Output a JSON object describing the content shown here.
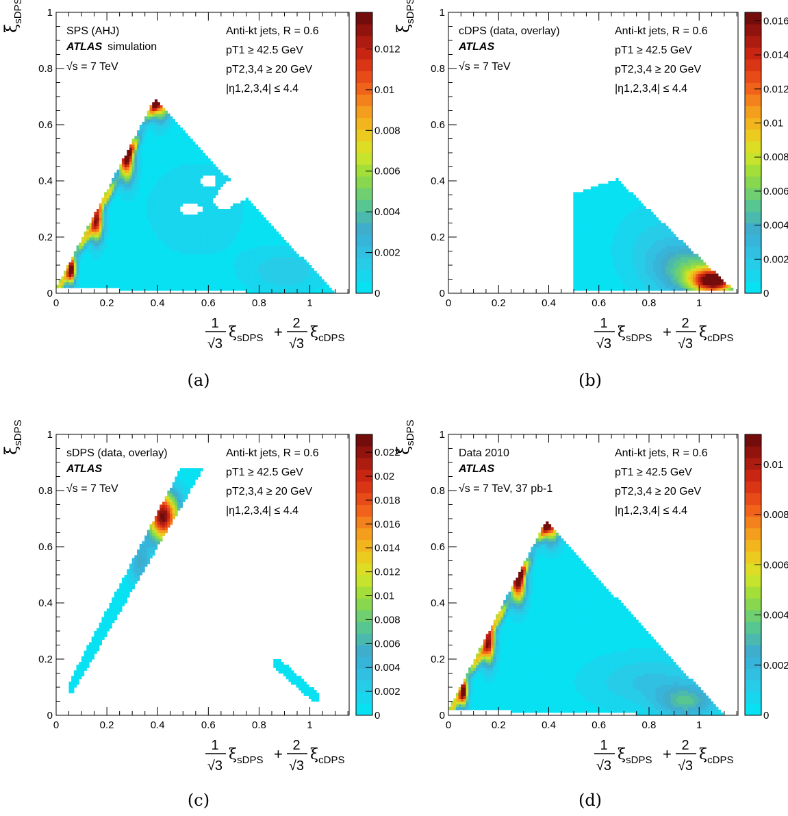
{
  "chart_data": [
    {
      "panel_label": "(a)",
      "type": "heatmap",
      "title": "",
      "legend_lines": [
        "SPS (AHJ)",
        "ATLAS",
        "simulation",
        "√s = 7 TeV"
      ],
      "cut_lines": [
        "Anti-kt jets, R = 0.6",
        "pT1 ≥ 42.5 GeV",
        "pT2,3,4 ≥ 20 GeV",
        "|η1,2,3,4| ≤ 4.4"
      ],
      "xlabel_parts": [
        "1",
        "√3",
        "ξ",
        "sDPS",
        "+",
        "2",
        "√3",
        "ξ",
        "cDPS"
      ],
      "ylabel_parts": [
        "ξ",
        "sDPS"
      ],
      "xlim": [
        0,
        1.155
      ],
      "ylim": [
        0,
        1
      ],
      "xticks": [
        0,
        0.2,
        0.4,
        0.6,
        0.8,
        1
      ],
      "xtick_labels": [
        "0",
        "0.2",
        "0.4",
        "0.6",
        "0.8",
        "1"
      ],
      "yticks": [
        0,
        0.2,
        0.4,
        0.6,
        0.8,
        1
      ],
      "ytick_labels": [
        "0",
        "0.2",
        "0.4",
        "0.6",
        "0.8",
        "1"
      ],
      "zlim": [
        0,
        0.0138
      ],
      "zticks": [
        0,
        0.002,
        0.004,
        0.006,
        0.008,
        0.01,
        0.012
      ],
      "ztick_labels": [
        "0",
        "0.002",
        "0.004",
        "0.006",
        "0.008",
        "0.01",
        "0.012"
      ],
      "background_level": 0.0003,
      "blobs": [
        {
          "x": 0.06,
          "y": 0.085,
          "sx": 0.012,
          "sy": 0.035,
          "amp": 0.0125
        },
        {
          "x": 0.16,
          "y": 0.26,
          "sx": 0.018,
          "sy": 0.05,
          "amp": 0.0115
        },
        {
          "x": 0.28,
          "y": 0.47,
          "sx": 0.02,
          "sy": 0.05,
          "amp": 0.0105
        },
        {
          "x": 0.41,
          "y": 0.7,
          "sx": 0.025,
          "sy": 0.05,
          "amp": 0.0125
        },
        {
          "x": 0.9,
          "y": 0.08,
          "sx": 0.1,
          "sy": 0.05,
          "amp": 0.0014
        },
        {
          "x": 0.55,
          "y": 0.3,
          "sx": 0.14,
          "sy": 0.12,
          "amp": 0.0007
        }
      ],
      "holes": [
        {
          "x": 0.53,
          "y": 0.3,
          "rx": 0.045,
          "ry": 0.02
        },
        {
          "x": 0.66,
          "y": 0.33,
          "rx": 0.04,
          "ry": 0.03
        },
        {
          "x": 0.6,
          "y": 0.4,
          "rx": 0.03,
          "ry": 0.025
        },
        {
          "x": 0.7,
          "y": 0.36,
          "rx": 0.06,
          "ry": 0.04
        }
      ],
      "support": "triangle"
    },
    {
      "panel_label": "(b)",
      "type": "heatmap",
      "title": "",
      "legend_lines": [
        "cDPS (data, overlay)",
        "ATLAS",
        "",
        "√s = 7 TeV"
      ],
      "cut_lines": [
        "Anti-kt jets, R = 0.6",
        "pT1 ≥ 42.5 GeV",
        "pT2,3,4 ≥ 20 GeV",
        "|η1,2,3,4| ≤ 4.4"
      ],
      "xlabel_parts": [
        "1",
        "√3",
        "ξ",
        "sDPS",
        "+",
        "2",
        "√3",
        "ξ",
        "cDPS"
      ],
      "ylabel_parts": [
        "ξ",
        "sDPS"
      ],
      "xlim": [
        0,
        1.155
      ],
      "ylim": [
        0,
        1
      ],
      "xticks": [
        0,
        0.2,
        0.4,
        0.6,
        0.8,
        1
      ],
      "xtick_labels": [
        "0",
        "0.2",
        "0.4",
        "0.6",
        "0.8",
        "1"
      ],
      "yticks": [
        0,
        0.2,
        0.4,
        0.6,
        0.8,
        1
      ],
      "ytick_labels": [
        "0",
        "0.2",
        "0.4",
        "0.6",
        "0.8",
        "1"
      ],
      "zlim": [
        0,
        0.0165
      ],
      "zticks": [
        0,
        0.002,
        0.004,
        0.006,
        0.008,
        0.01,
        0.012,
        0.014,
        0.016
      ],
      "ztick_labels": [
        "0",
        "0.002",
        "0.004",
        "0.006",
        "0.008",
        "0.01",
        "0.012",
        "0.014",
        "0.016"
      ],
      "background_level": 0.0003,
      "blobs": [
        {
          "x": 1.06,
          "y": 0.045,
          "sx": 0.06,
          "sy": 0.03,
          "amp": 0.0155
        },
        {
          "x": 0.98,
          "y": 0.08,
          "sx": 0.1,
          "sy": 0.06,
          "amp": 0.005
        },
        {
          "x": 0.85,
          "y": 0.16,
          "sx": 0.12,
          "sy": 0.1,
          "amp": 0.0015
        }
      ],
      "holes": [],
      "support": "cdps"
    },
    {
      "panel_label": "(c)",
      "type": "heatmap",
      "title": "",
      "legend_lines": [
        "sDPS (data, overlay)",
        "ATLAS",
        "",
        "√s = 7 TeV"
      ],
      "cut_lines": [
        "Anti-kt jets, R = 0.6",
        "pT1 ≥ 42.5 GeV",
        "pT2,3,4 ≥ 20 GeV",
        "|η1,2,3,4| ≤ 4.4"
      ],
      "xlabel_parts": [
        "1",
        "√3",
        "ξ",
        "sDPS",
        "+",
        "2",
        "√3",
        "ξ",
        "cDPS"
      ],
      "ylabel_parts": [
        "ξ",
        "sDPS"
      ],
      "xlim": [
        0,
        1.155
      ],
      "ylim": [
        0,
        1
      ],
      "xticks": [
        0,
        0.2,
        0.4,
        0.6,
        0.8,
        1
      ],
      "xtick_labels": [
        "0",
        "0.2",
        "0.4",
        "0.6",
        "0.8",
        "1"
      ],
      "yticks": [
        0,
        0.2,
        0.4,
        0.6,
        0.8,
        1
      ],
      "ytick_labels": [
        "0",
        "0.2",
        "0.4",
        "0.6",
        "0.8",
        "1"
      ],
      "zlim": [
        0,
        0.0235
      ],
      "zticks": [
        0,
        0.002,
        0.004,
        0.006,
        0.008,
        0.01,
        0.012,
        0.014,
        0.016,
        0.018,
        0.02,
        0.022
      ],
      "ztick_labels": [
        "0",
        "0.002",
        "0.004",
        "0.006",
        "0.008",
        "0.01",
        "0.012",
        "0.014",
        "0.016",
        "0.018",
        "0.02",
        "0.022"
      ],
      "background_level": 0.0003,
      "blobs": [
        {
          "x": 0.42,
          "y": 0.71,
          "sx": 0.04,
          "sy": 0.06,
          "amp": 0.0225
        },
        {
          "x": 0.33,
          "y": 0.55,
          "sx": 0.03,
          "sy": 0.06,
          "amp": 0.005
        },
        {
          "x": 0.5,
          "y": 0.68,
          "sx": 0.06,
          "sy": 0.1,
          "amp": 0.0012
        }
      ],
      "holes": [],
      "support": "sdps"
    },
    {
      "panel_label": "(d)",
      "type": "heatmap",
      "title": "",
      "legend_lines": [
        "Data 2010",
        "ATLAS",
        "",
        "√s = 7 TeV, 37 pb-1"
      ],
      "cut_lines": [
        "Anti-kt jets, R = 0.6",
        "pT1 ≥ 42.5 GeV",
        "pT2,3,4 ≥ 20 GeV",
        "|η1,2,3,4| ≤ 4.4"
      ],
      "xlabel_parts": [
        "1",
        "√3",
        "ξ",
        "sDPS",
        "+",
        "2",
        "√3",
        "ξ",
        "cDPS"
      ],
      "ylabel_parts": [
        "ξ",
        "sDPS"
      ],
      "xlim": [
        0,
        1.155
      ],
      "ylim": [
        0,
        1
      ],
      "xticks": [
        0,
        0.2,
        0.4,
        0.6,
        0.8,
        1
      ],
      "xtick_labels": [
        "0",
        "0.2",
        "0.4",
        "0.6",
        "0.8",
        "1"
      ],
      "yticks": [
        0,
        0.2,
        0.4,
        0.6,
        0.8,
        1
      ],
      "ytick_labels": [
        "0",
        "0.2",
        "0.4",
        "0.6",
        "0.8",
        "1"
      ],
      "zlim": [
        0,
        0.0112
      ],
      "zticks": [
        0,
        0.002,
        0.004,
        0.006,
        0.008,
        0.01
      ],
      "ztick_labels": [
        "0",
        "0.002",
        "0.004",
        "0.006",
        "0.008",
        "0.01"
      ],
      "background_level": 0.0003,
      "blobs": [
        {
          "x": 0.06,
          "y": 0.085,
          "sx": 0.012,
          "sy": 0.035,
          "amp": 0.0105
        },
        {
          "x": 0.16,
          "y": 0.26,
          "sx": 0.018,
          "sy": 0.05,
          "amp": 0.0095
        },
        {
          "x": 0.28,
          "y": 0.47,
          "sx": 0.02,
          "sy": 0.05,
          "amp": 0.009
        },
        {
          "x": 0.41,
          "y": 0.7,
          "sx": 0.025,
          "sy": 0.05,
          "amp": 0.0105
        },
        {
          "x": 0.95,
          "y": 0.05,
          "sx": 0.08,
          "sy": 0.04,
          "amp": 0.0028
        },
        {
          "x": 0.8,
          "y": 0.12,
          "sx": 0.15,
          "sy": 0.06,
          "amp": 0.0012
        }
      ],
      "holes": [
        {
          "x": 0.74,
          "y": 0.5,
          "rx": 0.03,
          "ry": 0.03
        },
        {
          "x": 0.66,
          "y": 0.58,
          "rx": 0.03,
          "ry": 0.025
        }
      ],
      "support": "triangle"
    }
  ]
}
